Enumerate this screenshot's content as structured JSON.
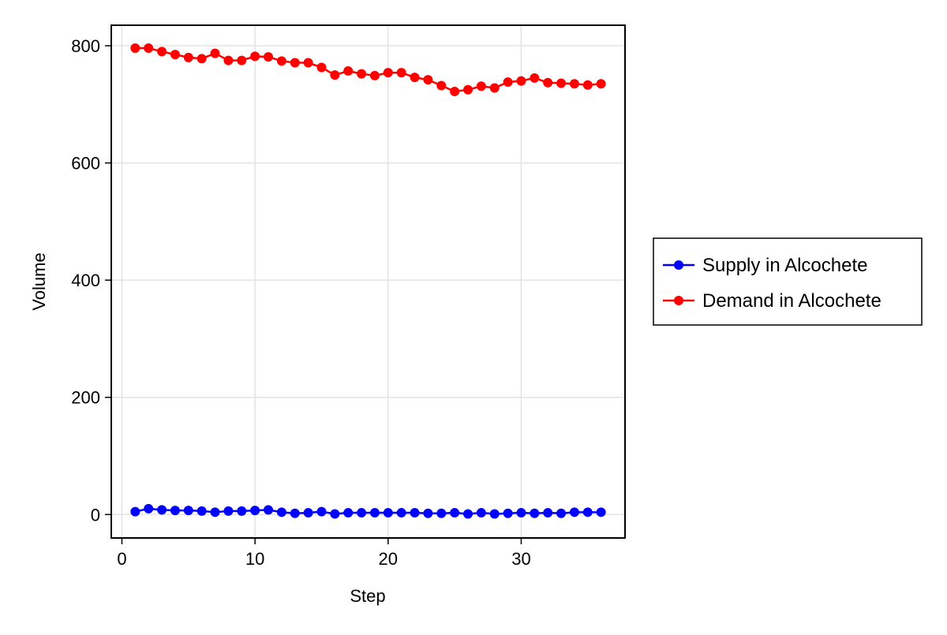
{
  "chart_data": {
    "type": "line",
    "title": "",
    "xlabel": "Step",
    "ylabel": "Volume",
    "xlim": [
      -0.8,
      37.8
    ],
    "ylim": [
      -40,
      835
    ],
    "xticks": [
      0,
      10,
      20,
      30
    ],
    "yticks": [
      0,
      200,
      400,
      600,
      800
    ],
    "grid": true,
    "legend_position": "right",
    "x": [
      1,
      2,
      3,
      4,
      5,
      6,
      7,
      8,
      9,
      10,
      11,
      12,
      13,
      14,
      15,
      16,
      17,
      18,
      19,
      20,
      21,
      22,
      23,
      24,
      25,
      26,
      27,
      28,
      29,
      30,
      31,
      32,
      33,
      34,
      35,
      36
    ],
    "series": [
      {
        "name": "Supply in Alcochete",
        "color": "#0000ff",
        "marker": "circle",
        "values": [
          5,
          10,
          8,
          7,
          7,
          6,
          4,
          6,
          6,
          7,
          8,
          4,
          2,
          3,
          5,
          1,
          3,
          3,
          3,
          3,
          3,
          3,
          2,
          2,
          3,
          1,
          3,
          1,
          2,
          3,
          2,
          3,
          2,
          4,
          4,
          4
        ]
      },
      {
        "name": "Demand in Alcochete",
        "color": "#ff0000",
        "marker": "circle",
        "values": [
          796,
          796,
          790,
          785,
          780,
          778,
          787,
          775,
          775,
          782,
          781,
          774,
          771,
          771,
          763,
          750,
          757,
          752,
          749,
          754,
          754,
          746,
          742,
          732,
          722,
          725,
          731,
          728,
          738,
          740,
          745,
          737,
          736,
          735,
          733,
          735
        ]
      }
    ]
  }
}
